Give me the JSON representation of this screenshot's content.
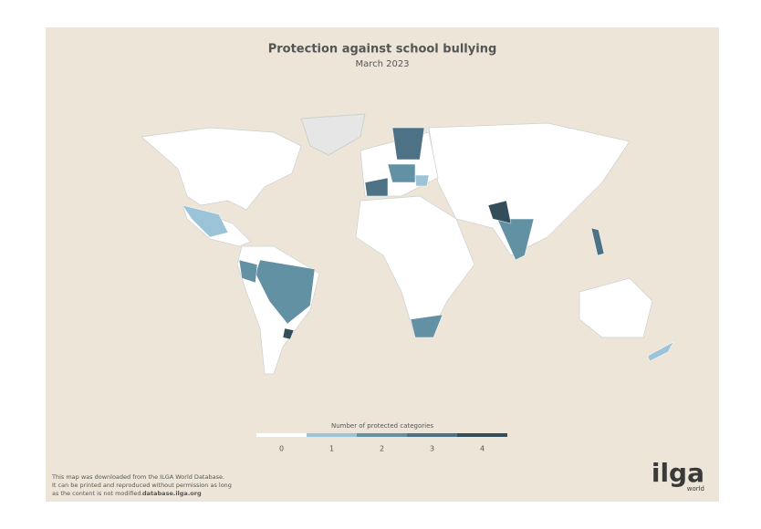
{
  "header": {
    "title": "Protection against school bullying",
    "subtitle": "March 2023"
  },
  "legend": {
    "title": "Number of protected categories",
    "items": [
      {
        "label": 0,
        "color": "#ffffff"
      },
      {
        "label": 1,
        "color": "#9cc4d8"
      },
      {
        "label": 2,
        "color": "#6391a4"
      },
      {
        "label": 3,
        "color": "#4d7285"
      },
      {
        "label": 4,
        "color": "#344d5b"
      }
    ]
  },
  "footer": {
    "lines": [
      "This map was downloaded from the ILGA World Database.",
      "It can be printed and reproduced without permission as long",
      "as the content is not modified."
    ],
    "link": "database.ilga.org"
  },
  "logo": {
    "name": "ilga",
    "tagline": "world"
  }
}
